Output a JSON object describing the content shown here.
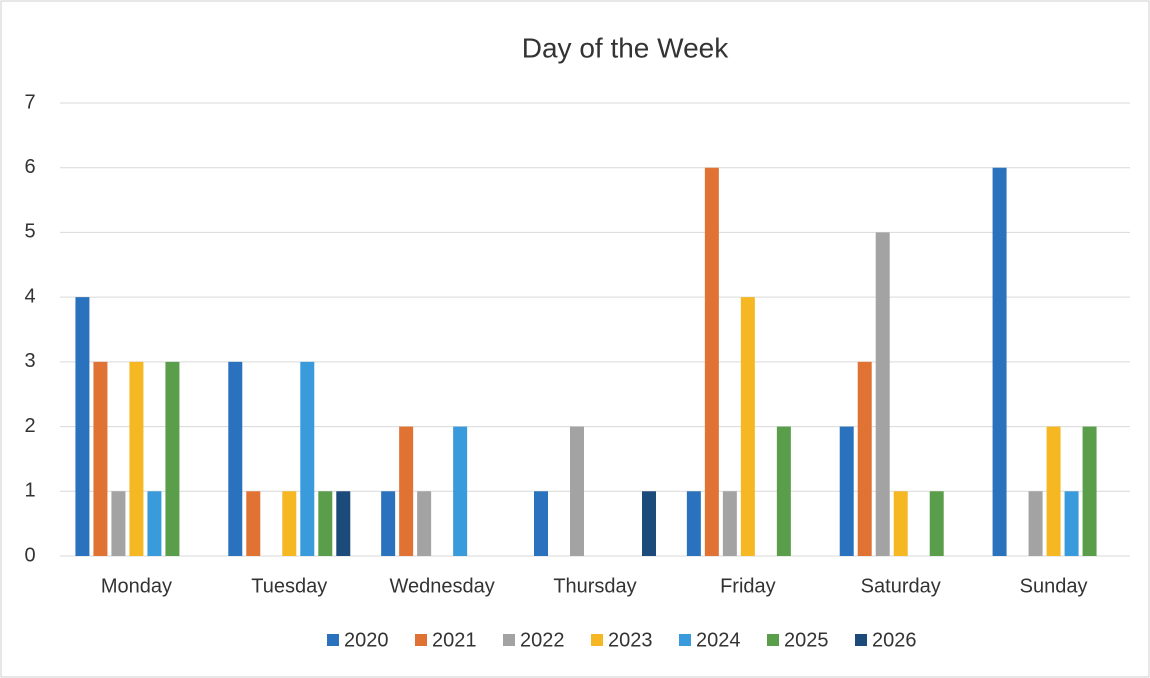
{
  "chart_data": {
    "type": "bar",
    "title": "Day of the Week",
    "categories": [
      "Monday",
      "Tuesday",
      "Wednesday",
      "Thursday",
      "Friday",
      "Saturday",
      "Sunday"
    ],
    "series": [
      {
        "name": "2020",
        "color": "#2a72bd",
        "values": [
          4,
          3,
          1,
          1,
          1,
          2,
          6
        ]
      },
      {
        "name": "2021",
        "color": "#e07334",
        "values": [
          3,
          1,
          2,
          0,
          6,
          3,
          0
        ]
      },
      {
        "name": "2022",
        "color": "#a3a3a3",
        "values": [
          1,
          0,
          1,
          2,
          1,
          5,
          1
        ]
      },
      {
        "name": "2023",
        "color": "#f5b823",
        "values": [
          3,
          1,
          0,
          0,
          4,
          1,
          2
        ]
      },
      {
        "name": "2024",
        "color": "#3a9bdc",
        "values": [
          1,
          3,
          2,
          0,
          0,
          0,
          1
        ]
      },
      {
        "name": "2025",
        "color": "#5a9e4b",
        "values": [
          3,
          1,
          0,
          0,
          2,
          1,
          2
        ]
      },
      {
        "name": "2026",
        "color": "#1c4a7a",
        "values": [
          0,
          1,
          0,
          1,
          0,
          0,
          0
        ]
      }
    ],
    "ylim": [
      0,
      7
    ],
    "yticks": [
      0,
      1,
      2,
      3,
      4,
      5,
      6,
      7
    ],
    "grid": true,
    "legend": "bottom"
  }
}
